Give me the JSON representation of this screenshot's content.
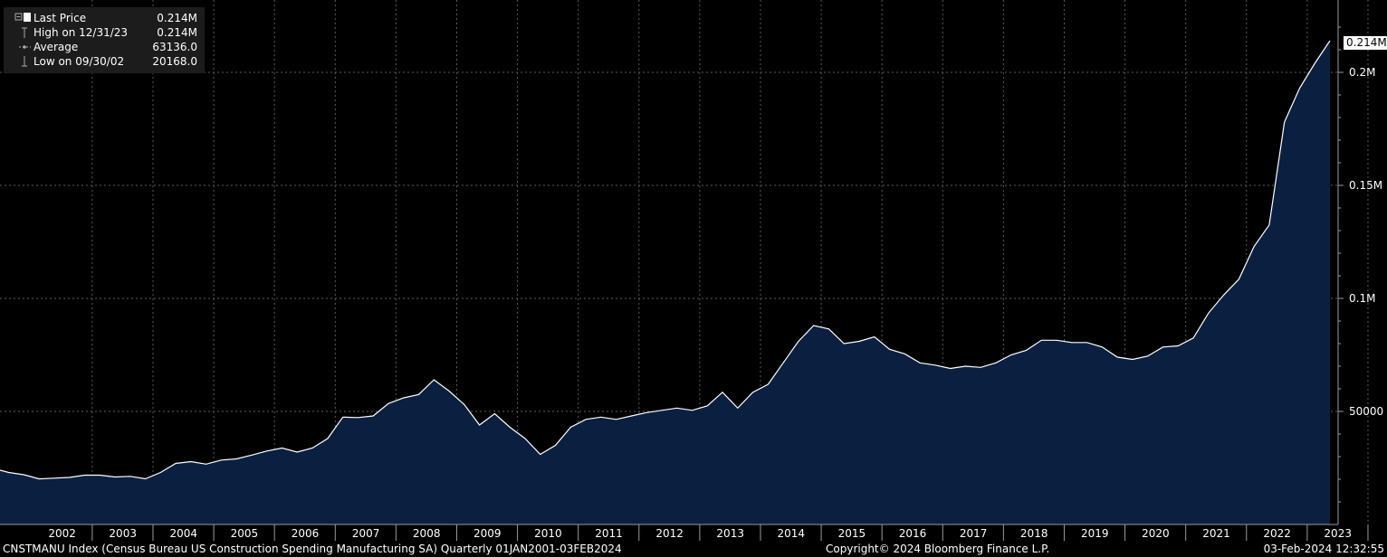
{
  "legend": {
    "last_price_label": "Last Price",
    "last_price_value": "0.214M",
    "high_label": "High on 12/31/23",
    "high_value": "0.214M",
    "average_label": "Average",
    "average_value": "63136.0",
    "low_label": "Low on 09/30/02",
    "low_value": "20168.0"
  },
  "last_value_tag": "0.214M",
  "footer": {
    "description": "CNSTMANU Index (Census Bureau US Construction Spending Manufacturing SA)  Quarterly 01JAN2001-03FEB2024",
    "copyright": "Copyright© 2024 Bloomberg Finance L.P.",
    "timestamp": "03-Feb-2024 12:32:55"
  },
  "colors": {
    "background": "#000000",
    "area_fill": "#0b2040",
    "line": "#ffffff",
    "grid": "#5a5a5a",
    "legend_bg": "#1c1c1c"
  },
  "chart_data": {
    "type": "area",
    "x_tick_labels": [
      "2002",
      "2003",
      "2004",
      "2005",
      "2006",
      "2007",
      "2008",
      "2009",
      "2010",
      "2011",
      "2012",
      "2013",
      "2014",
      "2015",
      "2016",
      "2017",
      "2018",
      "2019",
      "2020",
      "2021",
      "2022",
      "2023"
    ],
    "y_tick_labels": [
      "50000",
      "0.1M",
      "0.15M",
      "0.2M"
    ],
    "y_tick_values": [
      50000,
      100000,
      150000,
      200000
    ],
    "ylim": [
      0,
      230000
    ],
    "grid": true,
    "legend_position": "top-left",
    "x_start": 2001.625,
    "x_step": 0.25,
    "values": [
      23000,
      22000,
      20168,
      20500,
      20800,
      21800,
      21800,
      21000,
      21300,
      20200,
      23000,
      27000,
      27800,
      26700,
      28500,
      29000,
      30700,
      32500,
      33800,
      32000,
      33800,
      38000,
      47500,
      47300,
      48000,
      53500,
      56000,
      57500,
      64000,
      59000,
      53000,
      44000,
      49000,
      43000,
      38000,
      31000,
      35000,
      43000,
      46500,
      47500,
      46500,
      48000,
      49500,
      50500,
      51500,
      50500,
      52500,
      58500,
      51500,
      58500,
      62000,
      71500,
      81000,
      88000,
      86500,
      80000,
      81000,
      83000,
      77500,
      75500,
      71500,
      70500,
      69000,
      70000,
      69500,
      71500,
      75000,
      77000,
      81500,
      81500,
      80500,
      80500,
      78500,
      74000,
      73000,
      74500,
      78500,
      79000,
      82500,
      93500,
      101500,
      108500,
      123000,
      132500,
      178000,
      193000,
      204000,
      214000
    ]
  }
}
